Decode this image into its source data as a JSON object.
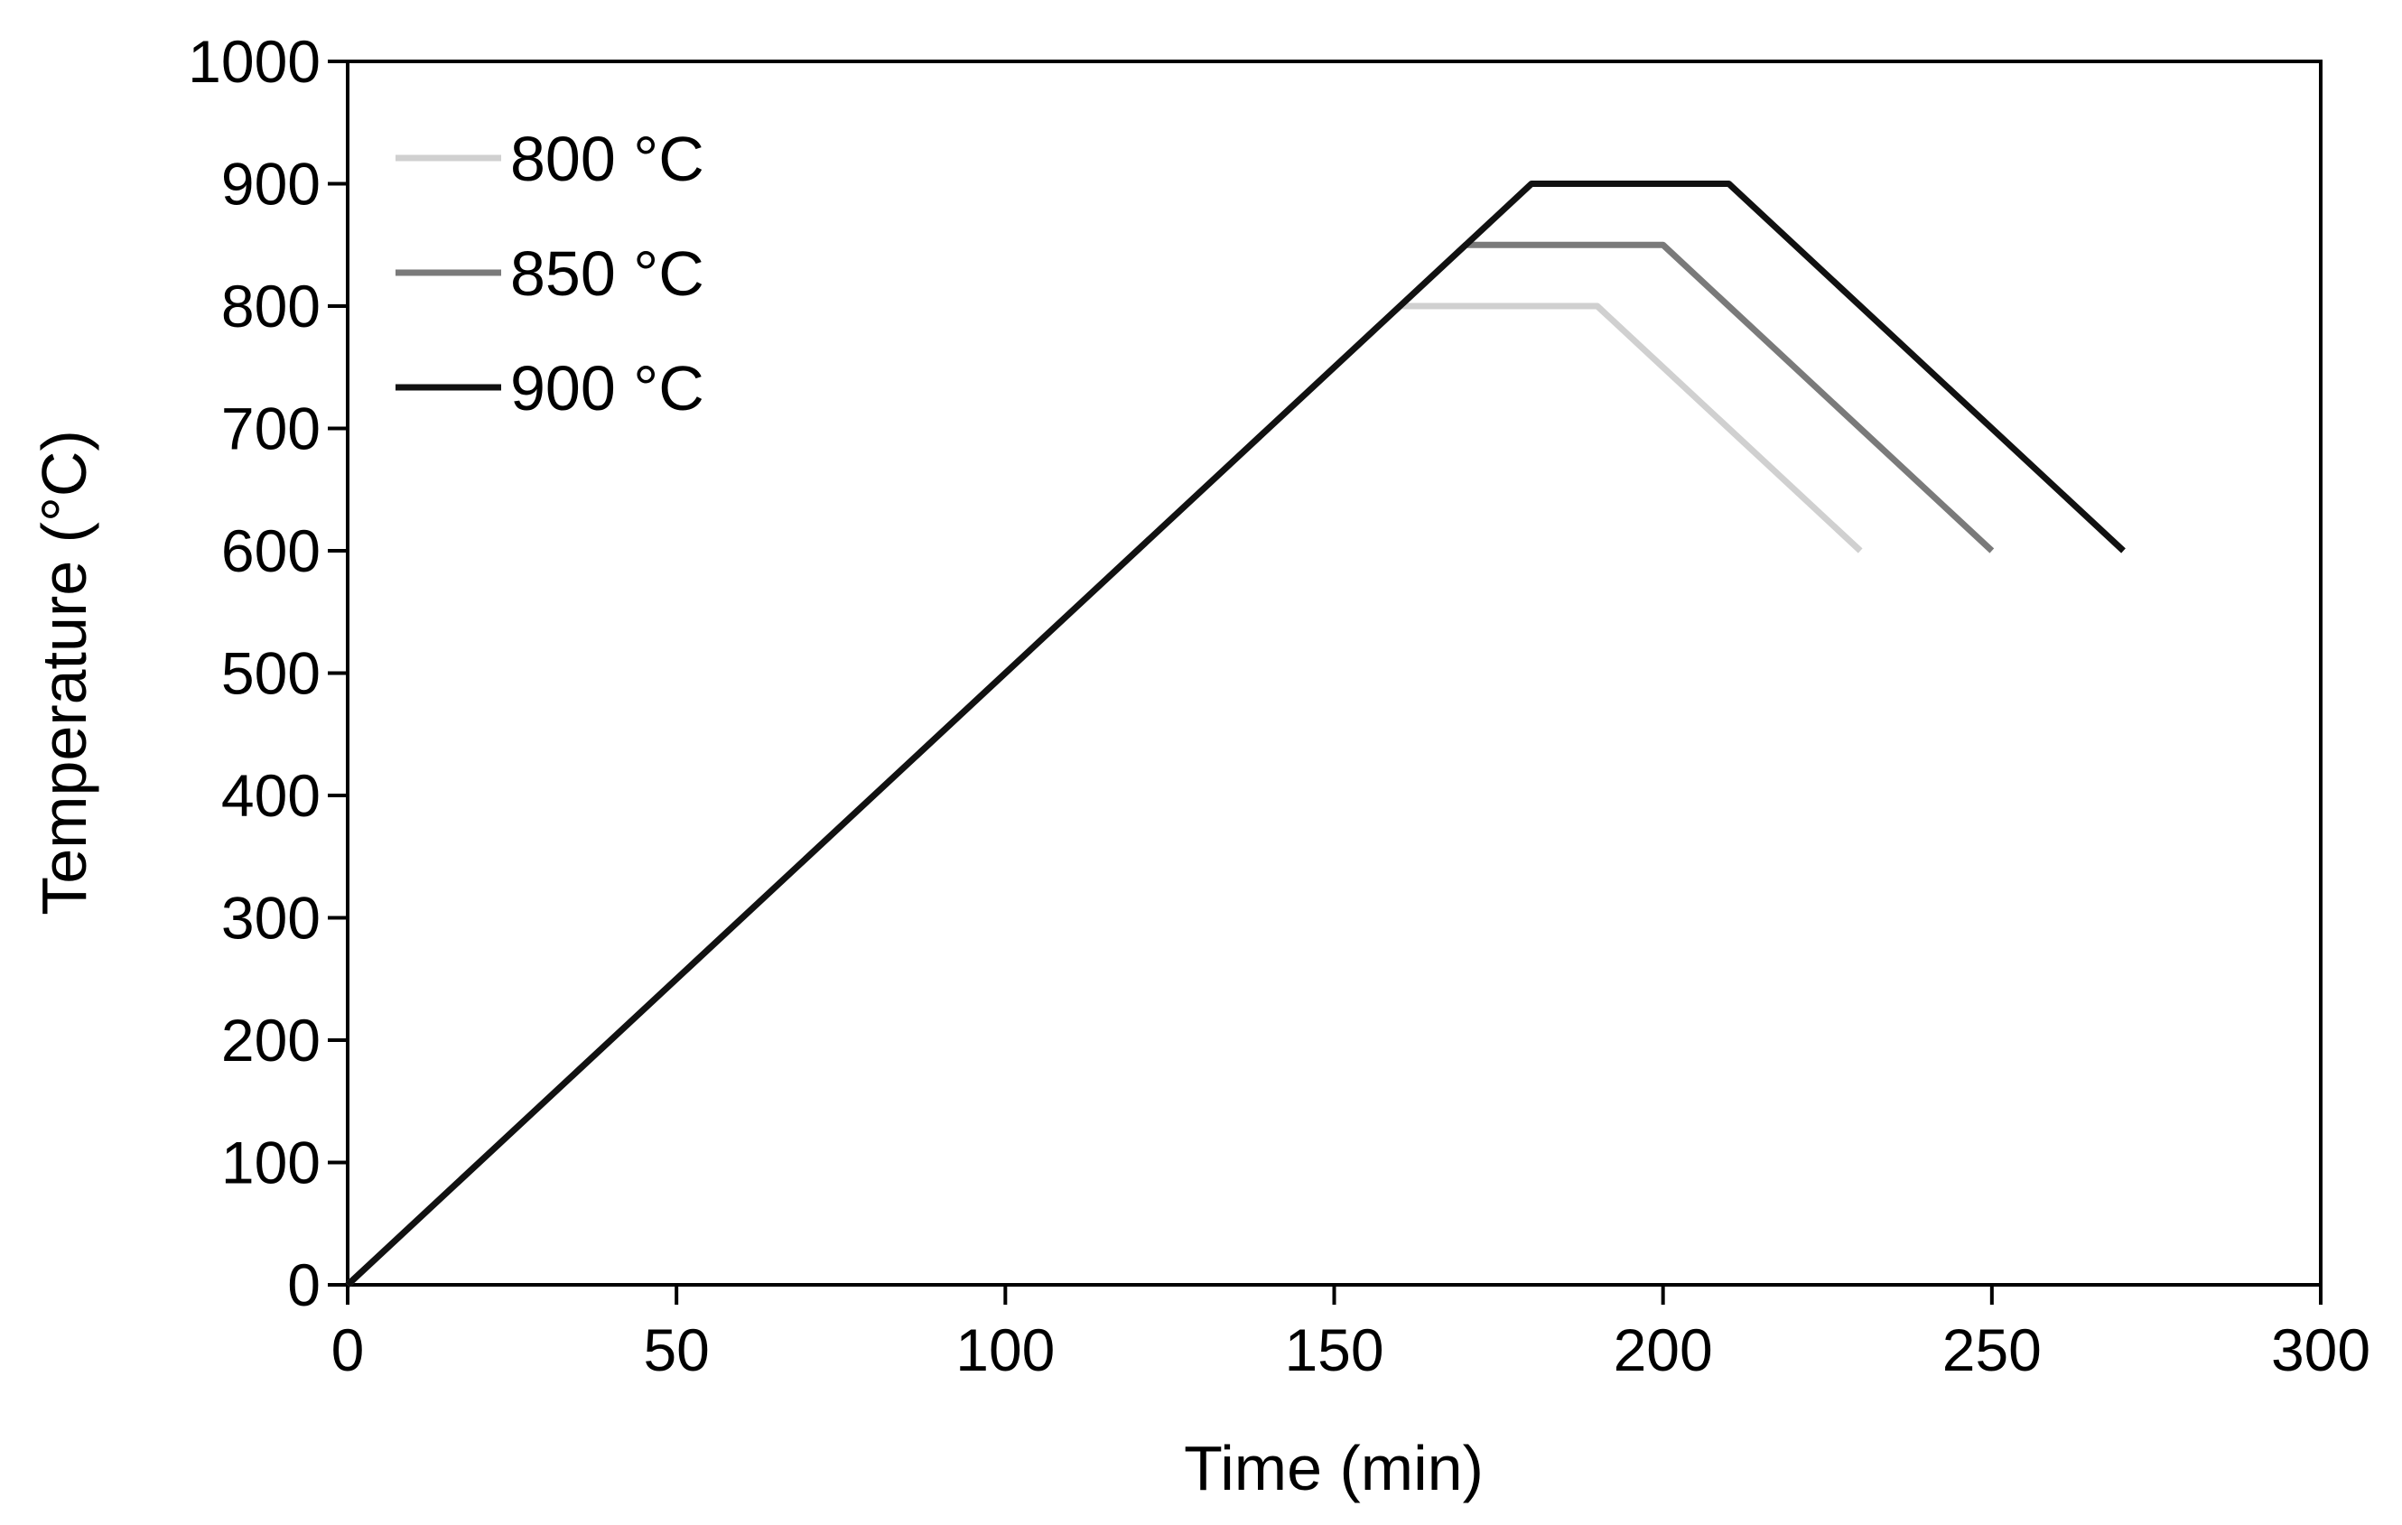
{
  "chart_data": {
    "type": "line",
    "title": "",
    "xlabel": "Time (min)",
    "ylabel": "Temperature (°C)",
    "xlim": [
      0,
      300
    ],
    "ylim": [
      0,
      1000
    ],
    "xticks": [
      0,
      50,
      100,
      150,
      200,
      250,
      300
    ],
    "yticks": [
      0,
      100,
      200,
      300,
      400,
      500,
      600,
      700,
      800,
      900,
      1000
    ],
    "grid": false,
    "legend_position": "top-left",
    "series": [
      {
        "name": "800 °C",
        "color": "#d0d0d0",
        "x": [
          0,
          160,
          190,
          230
        ],
        "y": [
          0,
          800,
          800,
          600
        ]
      },
      {
        "name": "850 °C",
        "color": "#7a7a7a",
        "x": [
          0,
          170,
          200,
          250
        ],
        "y": [
          0,
          850,
          850,
          600
        ]
      },
      {
        "name": "900 °C",
        "color": "#111111",
        "x": [
          0,
          180,
          210,
          270
        ],
        "y": [
          0,
          900,
          900,
          600
        ]
      }
    ]
  }
}
